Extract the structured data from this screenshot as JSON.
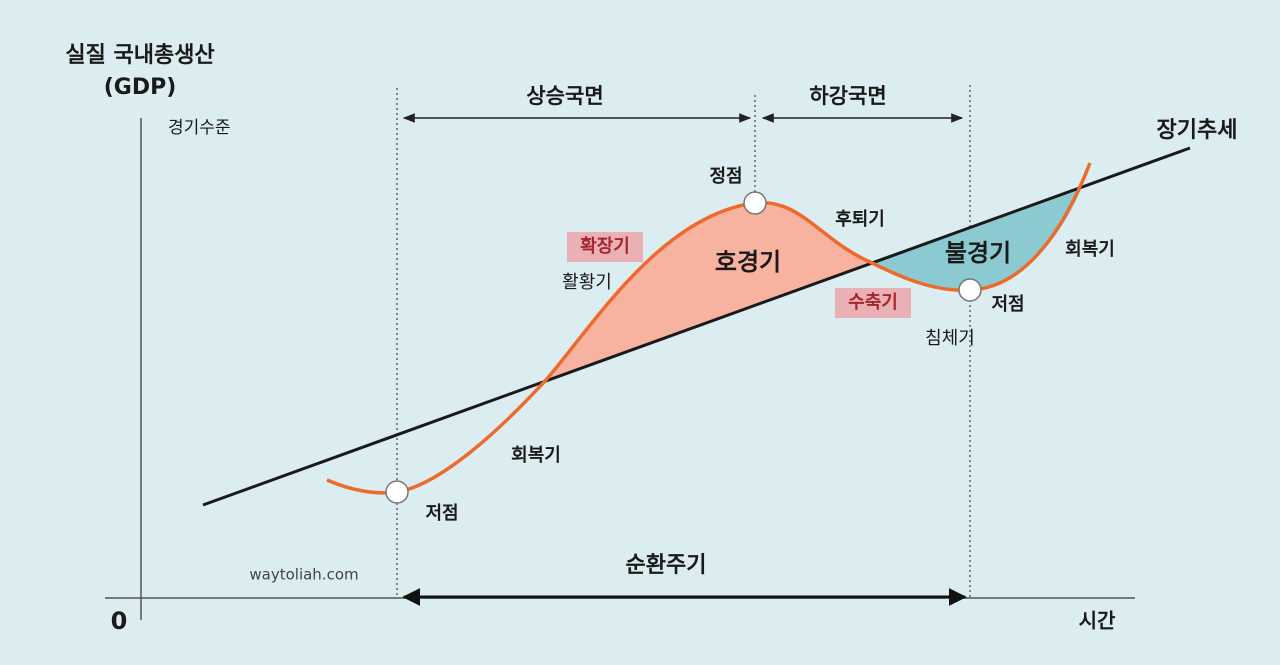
{
  "axes": {
    "y_title": [
      "실질 국내총생산",
      "(GDP)"
    ],
    "y_subtitle": "경기수준",
    "origin": "0",
    "x_title": "시간"
  },
  "phases": {
    "rising": "상승국면",
    "falling": "하강국면",
    "cycle": "순환주기"
  },
  "trend": "장기추세",
  "points": {
    "trough_left": "저점",
    "peak": "정점",
    "trough_right": "저점"
  },
  "stages": {
    "recovery_left": "회복기",
    "expansion": "확장기",
    "boom_period": "활황기",
    "boom": "호경기",
    "recession": "후퇴기",
    "contraction": "수축기",
    "slump": "불경기",
    "stagnation": "침체기",
    "recovery_right": "회복기"
  },
  "watermark": "waytoliah.com"
}
